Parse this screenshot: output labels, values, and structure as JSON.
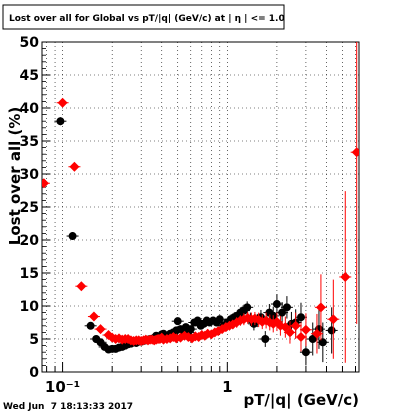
{
  "title": "Lost over all for Global vs pT/|q| (GeV/c) at | η | <= 1.0",
  "timestamp": "Wed Jun  7 18:13:33 2017",
  "chart_data": {
    "type": "scatter",
    "title": "Lost over all for Global vs pT/|q| (GeV/c) at | η | <= 1.0",
    "xlabel": "pT/|q| (GeV/c)",
    "ylabel": "Lost over all (%)",
    "x_scale": "log",
    "xlim": [
      0.075,
      6.3
    ],
    "ylim": [
      0,
      50
    ],
    "x_tick_labels": [
      "10⁻¹",
      "1"
    ],
    "y_ticks": [
      0,
      5,
      10,
      15,
      20,
      25,
      30,
      35,
      40,
      45,
      50
    ],
    "grid": true,
    "colors": {
      "black": "#000000",
      "red": "#ff0000"
    },
    "series": [
      {
        "marker": "circle",
        "color": "#000000",
        "points": [
          [
            0.075,
            28.6,
            0.6
          ],
          [
            0.097,
            38.0,
            0.6
          ],
          [
            0.115,
            20.6,
            0.6
          ],
          [
            0.148,
            7.0,
            0.5
          ],
          [
            0.16,
            5.0,
            0.4
          ],
          [
            0.17,
            4.5,
            0.4
          ],
          [
            0.18,
            3.8,
            0.3
          ],
          [
            0.19,
            3.4,
            0.3
          ],
          [
            0.2,
            3.5,
            0.3
          ],
          [
            0.21,
            3.5,
            0.3
          ],
          [
            0.22,
            3.7,
            0.3
          ],
          [
            0.23,
            3.8,
            0.3
          ],
          [
            0.24,
            4.0,
            0.3
          ],
          [
            0.25,
            4.2,
            0.3
          ],
          [
            0.26,
            4.3,
            0.3
          ],
          [
            0.27,
            4.5,
            0.3
          ],
          [
            0.28,
            4.4,
            0.3
          ],
          [
            0.29,
            4.6,
            0.3
          ],
          [
            0.3,
            4.6,
            0.3
          ],
          [
            0.31,
            4.7,
            0.3
          ],
          [
            0.32,
            4.8,
            0.3
          ],
          [
            0.33,
            4.9,
            0.3
          ],
          [
            0.34,
            5.0,
            0.3
          ],
          [
            0.35,
            5.0,
            0.3
          ],
          [
            0.36,
            5.2,
            0.3
          ],
          [
            0.37,
            5.5,
            0.4
          ],
          [
            0.38,
            5.3,
            0.4
          ],
          [
            0.39,
            5.1,
            0.4
          ],
          [
            0.4,
            5.7,
            0.4
          ],
          [
            0.41,
            5.8,
            0.4
          ],
          [
            0.43,
            5.5,
            0.4
          ],
          [
            0.45,
            5.8,
            0.4
          ],
          [
            0.47,
            6.0,
            0.4
          ],
          [
            0.49,
            6.3,
            0.4
          ],
          [
            0.5,
            7.7,
            0.5
          ],
          [
            0.52,
            6.5,
            0.4
          ],
          [
            0.54,
            6.3,
            0.4
          ],
          [
            0.56,
            6.8,
            0.5
          ],
          [
            0.58,
            6.0,
            0.5
          ],
          [
            0.6,
            6.5,
            0.5
          ],
          [
            0.63,
            7.5,
            0.5
          ],
          [
            0.66,
            7.8,
            0.5
          ],
          [
            0.69,
            7.0,
            0.5
          ],
          [
            0.72,
            7.3,
            0.5
          ],
          [
            0.75,
            7.8,
            0.5
          ],
          [
            0.78,
            7.5,
            0.5
          ],
          [
            0.82,
            7.8,
            0.6
          ],
          [
            0.86,
            7.5,
            0.6
          ],
          [
            0.9,
            8.0,
            0.6
          ],
          [
            0.95,
            7.0,
            0.6
          ],
          [
            1.0,
            7.5,
            0.7
          ],
          [
            1.05,
            8.0,
            0.7
          ],
          [
            1.1,
            8.3,
            0.7
          ],
          [
            1.15,
            8.5,
            0.8
          ],
          [
            1.2,
            9.0,
            0.8
          ],
          [
            1.26,
            9.3,
            0.9
          ],
          [
            1.32,
            9.8,
            0.9
          ],
          [
            1.38,
            8.0,
            1.0
          ],
          [
            1.45,
            7.3,
            1.0
          ],
          [
            1.52,
            7.8,
            1.0
          ],
          [
            1.6,
            8.3,
            1.1
          ],
          [
            1.7,
            5.0,
            1.2
          ],
          [
            1.8,
            9.0,
            1.3
          ],
          [
            1.9,
            8.5,
            1.4
          ],
          [
            2.0,
            10.3,
            1.5
          ],
          [
            2.15,
            9.0,
            1.6
          ],
          [
            2.3,
            9.8,
            1.7
          ],
          [
            2.45,
            7.3,
            1.8
          ],
          [
            2.6,
            7.5,
            2.0
          ],
          [
            2.8,
            8.3,
            2.2
          ],
          [
            3.0,
            3.0,
            2.0
          ],
          [
            3.3,
            5.0,
            2.5
          ],
          [
            3.6,
            6.5,
            3.0
          ],
          [
            3.8,
            4.5,
            3.0
          ],
          [
            4.3,
            6.3,
            3.5
          ]
        ]
      },
      {
        "marker": "diamond",
        "color": "#ff0000",
        "points": [
          [
            0.077,
            28.6,
            0.6
          ],
          [
            0.1,
            40.8,
            0.6
          ],
          [
            0.118,
            31.1,
            0.6
          ],
          [
            0.13,
            13.0,
            0.5
          ],
          [
            0.155,
            8.4,
            0.5
          ],
          [
            0.17,
            6.5,
            0.4
          ],
          [
            0.19,
            5.6,
            0.4
          ],
          [
            0.2,
            5.2,
            0.4
          ],
          [
            0.21,
            5.0,
            0.3
          ],
          [
            0.22,
            5.1,
            0.3
          ],
          [
            0.23,
            4.9,
            0.3
          ],
          [
            0.24,
            5.0,
            0.3
          ],
          [
            0.25,
            5.0,
            0.3
          ],
          [
            0.26,
            4.8,
            0.3
          ],
          [
            0.27,
            4.7,
            0.3
          ],
          [
            0.28,
            4.8,
            0.3
          ],
          [
            0.29,
            4.8,
            0.3
          ],
          [
            0.3,
            4.7,
            0.3
          ],
          [
            0.31,
            4.8,
            0.3
          ],
          [
            0.32,
            4.9,
            0.3
          ],
          [
            0.33,
            4.8,
            0.3
          ],
          [
            0.34,
            4.9,
            0.3
          ],
          [
            0.35,
            4.9,
            0.3
          ],
          [
            0.36,
            4.8,
            0.3
          ],
          [
            0.37,
            4.9,
            0.3
          ],
          [
            0.38,
            5.0,
            0.3
          ],
          [
            0.39,
            5.0,
            0.4
          ],
          [
            0.4,
            5.2,
            0.4
          ],
          [
            0.41,
            4.9,
            0.4
          ],
          [
            0.43,
            5.0,
            0.4
          ],
          [
            0.45,
            5.1,
            0.4
          ],
          [
            0.47,
            5.3,
            0.4
          ],
          [
            0.49,
            5.1,
            0.4
          ],
          [
            0.52,
            5.2,
            0.4
          ],
          [
            0.55,
            5.5,
            0.4
          ],
          [
            0.58,
            5.3,
            0.4
          ],
          [
            0.61,
            5.1,
            0.5
          ],
          [
            0.64,
            5.4,
            0.5
          ],
          [
            0.67,
            5.3,
            0.5
          ],
          [
            0.7,
            5.6,
            0.5
          ],
          [
            0.73,
            5.5,
            0.5
          ],
          [
            0.76,
            5.8,
            0.5
          ],
          [
            0.8,
            5.7,
            0.5
          ],
          [
            0.84,
            6.0,
            0.6
          ],
          [
            0.88,
            6.2,
            0.6
          ],
          [
            0.93,
            6.5,
            0.6
          ],
          [
            0.98,
            6.8,
            0.7
          ],
          [
            1.03,
            7.0,
            0.7
          ],
          [
            1.08,
            7.2,
            0.7
          ],
          [
            1.14,
            7.5,
            0.8
          ],
          [
            1.2,
            7.8,
            0.8
          ],
          [
            1.26,
            8.0,
            0.9
          ],
          [
            1.33,
            8.2,
            0.9
          ],
          [
            1.4,
            8.0,
            1.0
          ],
          [
            1.47,
            8.1,
            1.0
          ],
          [
            1.55,
            7.9,
            1.1
          ],
          [
            1.63,
            7.6,
            1.1
          ],
          [
            1.72,
            7.8,
            1.2
          ],
          [
            1.81,
            7.5,
            1.2
          ],
          [
            1.9,
            7.3,
            1.3
          ],
          [
            2.0,
            7.6,
            1.4
          ],
          [
            2.1,
            7.0,
            1.5
          ],
          [
            2.25,
            6.8,
            1.6
          ],
          [
            2.4,
            6.0,
            1.7
          ],
          [
            2.6,
            7.0,
            2.0
          ],
          [
            2.8,
            5.3,
            2.2
          ],
          [
            3.0,
            6.4,
            2.5
          ],
          [
            3.5,
            5.8,
            3.0
          ],
          [
            3.7,
            9.8,
            5.0
          ],
          [
            4.4,
            8.0,
            6.0
          ],
          [
            5.2,
            14.4,
            13.0
          ],
          [
            6.1,
            33.3,
            26.0
          ]
        ]
      }
    ]
  }
}
